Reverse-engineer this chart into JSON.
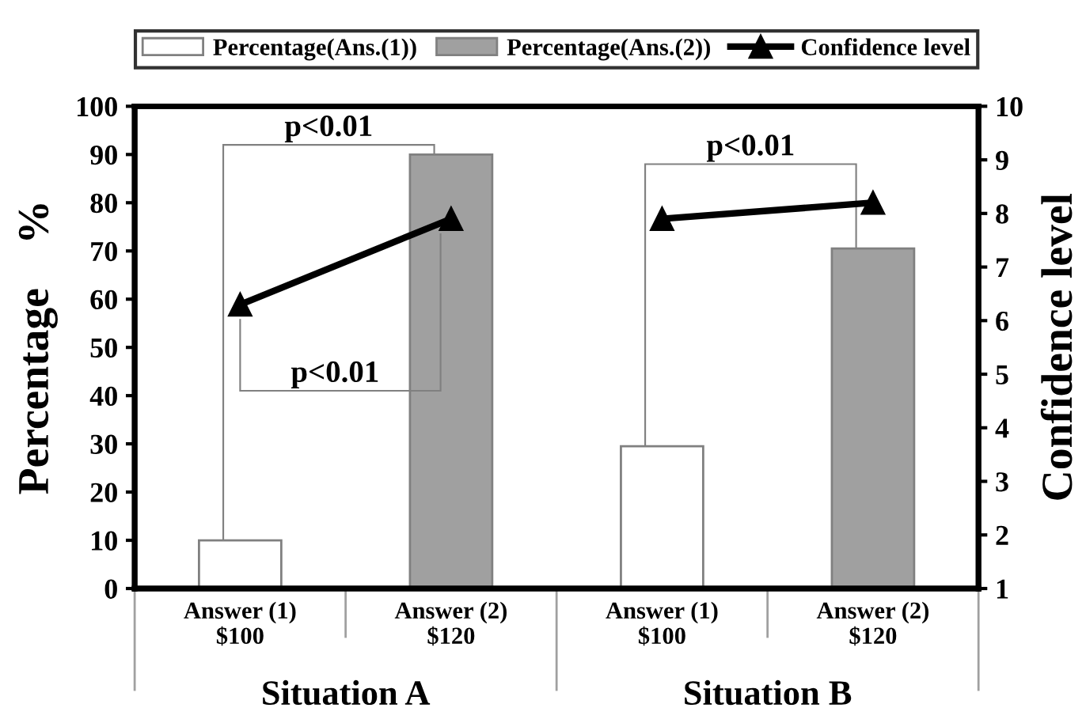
{
  "chart_data": {
    "type": "bar",
    "categories": [
      "Answer (1)\n$100",
      "Answer (2)\n$120",
      "Answer (1)\n$100",
      "Answer (2)\n$120"
    ],
    "series": [
      {
        "name": "Percentage(Ans.(1))",
        "color": "#ffffff",
        "values": [
          10,
          null,
          29.5,
          null
        ]
      },
      {
        "name": "Percentage(Ans.(2))",
        "color": "#a0a0a0",
        "values": [
          null,
          90,
          null,
          70.5
        ]
      },
      {
        "name": "Confidence level",
        "type": "line",
        "axis": "y2",
        "color": "#000000",
        "marker": "triangle",
        "values": [
          6.3,
          7.9,
          null,
          null
        ]
      },
      {
        "type": "line",
        "axis": "y2",
        "color": "#000000",
        "marker": "triangle",
        "values": [
          null,
          null,
          7.9,
          8.2
        ]
      }
    ],
    "ylabel": "Percentage    %",
    "y2label": "Confidence level",
    "ylim": [
      0,
      100
    ],
    "yticks": [
      0,
      10,
      20,
      30,
      40,
      50,
      60,
      70,
      80,
      90,
      100
    ],
    "y2lim": [
      1,
      10
    ],
    "y2ticks": [
      1,
      2,
      3,
      4,
      5,
      6,
      7,
      8,
      9,
      10
    ],
    "annotations": [
      "p<0.01",
      "p<0.01",
      "p<0.01",
      "Situation A",
      "Situation B"
    ],
    "legend": "top",
    "grid": false
  }
}
